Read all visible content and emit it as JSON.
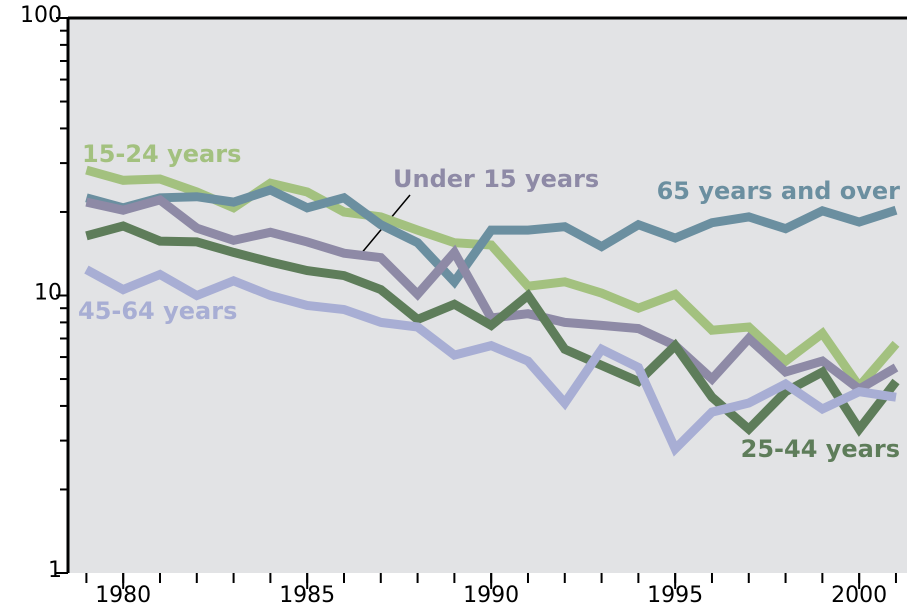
{
  "chart_data": {
    "type": "line",
    "log_scale": true,
    "x": [
      1979,
      1980,
      1981,
      1982,
      1983,
      1984,
      1985,
      1986,
      1987,
      1988,
      1989,
      1990,
      1991,
      1992,
      1993,
      1994,
      1995,
      1996,
      1997,
      1998,
      1999,
      2000,
      2001
    ],
    "xlim": [
      1978.5,
      2001.3
    ],
    "xticks": [
      1980,
      1985,
      1990,
      1995,
      2000
    ],
    "ylim": [
      1,
      100
    ],
    "yticks": [
      1,
      10,
      100
    ],
    "yminor_ticks": [
      2,
      3,
      4,
      5,
      6,
      7,
      8,
      9,
      20,
      30,
      40,
      50,
      60,
      70,
      80,
      90
    ],
    "series": [
      {
        "name": "15-24 years",
        "color": "#a3c17f",
        "values": [
          28.3,
          26,
          26.3,
          23.6,
          20.7,
          25.4,
          23.6,
          20,
          19.2,
          17.2,
          15.5,
          15.2,
          10.8,
          11.2,
          10.2,
          9,
          10.1,
          7.5,
          7.7,
          5.8,
          7.3,
          4.7,
          6.7
        ]
      },
      {
        "name": "65 years and over",
        "color": "#6b8fa0",
        "values": [
          22.5,
          20.7,
          22.5,
          22.7,
          21.7,
          24,
          20.7,
          22.5,
          18,
          15.5,
          11.2,
          17.2,
          17.2,
          17.7,
          15,
          18,
          16.1,
          18.3,
          19.2,
          17.4,
          20.2,
          18.4,
          20.3
        ]
      },
      {
        "name": "Under 15 years",
        "color": "#8e8aa6",
        "values": [
          21.7,
          20.3,
          22.1,
          17.5,
          15.8,
          16.9,
          15.6,
          14.2,
          13.7,
          10.1,
          14.3,
          8.3,
          8.6,
          8,
          7.8,
          7.6,
          6.6,
          5,
          7,
          5.3,
          5.8,
          4.6,
          5.5
        ]
      },
      {
        "name": "25-44 years",
        "color": "#5e7d5a",
        "values": [
          16.4,
          17.8,
          15.7,
          15.6,
          14.3,
          13.2,
          12.3,
          11.8,
          10.5,
          8.2,
          9.3,
          7.8,
          10,
          6.4,
          5.6,
          4.9,
          6.6,
          4.3,
          3.3,
          4.5,
          5.3,
          3.3,
          4.9
        ]
      },
      {
        "name": "45-64 years",
        "color": "#a8aed4",
        "values": [
          12.4,
          10.5,
          11.9,
          10,
          11.3,
          10,
          9.2,
          8.9,
          8,
          7.7,
          6.1,
          6.6,
          5.8,
          4.1,
          6.4,
          5.5,
          2.8,
          3.8,
          4.1,
          4.8,
          3.9,
          4.5,
          4.3
        ]
      }
    ]
  }
}
